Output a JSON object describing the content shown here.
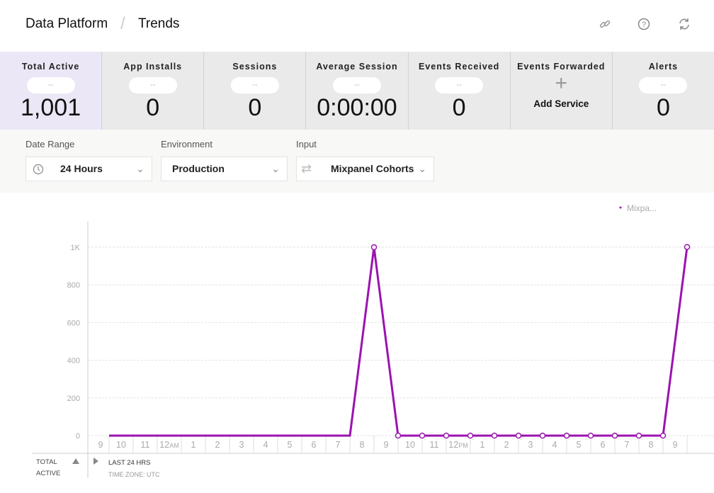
{
  "header": {
    "app": "Data Platform",
    "page": "Trends",
    "icons": [
      "link-icon",
      "help-icon",
      "refresh-icon"
    ]
  },
  "tiles": [
    {
      "label": "Total Active",
      "delta": "--",
      "value": "1,001",
      "active": true
    },
    {
      "label": "App Installs",
      "delta": "--",
      "value": "0"
    },
    {
      "label": "Sessions",
      "delta": "--",
      "value": "0"
    },
    {
      "label": "Average Session",
      "delta": "--",
      "value": "0:00:00"
    },
    {
      "label": "Events Received",
      "delta": "--",
      "value": "0"
    },
    {
      "label": "Events Forwarded",
      "add_label": "Add Service"
    },
    {
      "label": "Alerts",
      "delta": "--",
      "value": "0"
    }
  ],
  "filters": {
    "date_range": {
      "label": "Date Range",
      "value": "24 Hours"
    },
    "environment": {
      "label": "Environment",
      "value": "Production"
    },
    "input": {
      "label": "Input",
      "value": "Mixpanel Cohorts"
    }
  },
  "footer": {
    "metric_line1": "TOTAL",
    "metric_line2": "ACTIVE",
    "range": "LAST 24 HRS",
    "timezone": "TIME ZONE: UTC"
  },
  "chart_data": {
    "type": "line",
    "legend": [
      {
        "name": "Mixpa...",
        "color": "#9b12b0"
      }
    ],
    "legend_position": "top-right",
    "color": "#9b12b0",
    "ylim": [
      0,
      1000
    ],
    "yticks": [
      0,
      200,
      400,
      600,
      800,
      1000
    ],
    "ytick_labels": [
      "0",
      "200",
      "400",
      "600",
      "800",
      "1K"
    ],
    "x_labels": [
      "9",
      "10",
      "11",
      "12AM",
      "1",
      "2",
      "3",
      "4",
      "5",
      "6",
      "7",
      "8",
      "9",
      "10",
      "11",
      "12PM",
      "1",
      "2",
      "3",
      "4",
      "5",
      "6",
      "7",
      "8",
      "9"
    ],
    "values": [
      0,
      0,
      0,
      0,
      0,
      0,
      0,
      0,
      0,
      0,
      0,
      1000,
      0,
      0,
      0,
      0,
      0,
      0,
      0,
      0,
      0,
      0,
      0,
      0,
      1001
    ],
    "marker_from_index": 11,
    "grid": true
  }
}
